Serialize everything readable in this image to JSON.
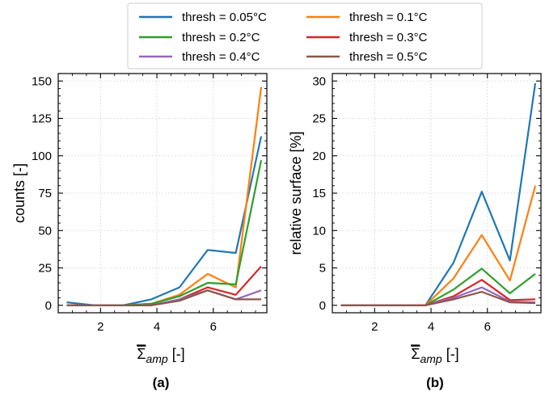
{
  "colors": {
    "0.05": "#1f77b4",
    "0.1": "#ff7f0e",
    "0.2": "#2ca02c",
    "0.3": "#d62728",
    "0.4": "#9467bd",
    "0.5": "#8c564b"
  },
  "legend": {
    "entries": [
      "thresh = 0.05°C",
      "thresh = 0.1°C",
      "thresh = 0.2°C",
      "thresh = 0.3°C",
      "thresh = 0.4°C",
      "thresh = 0.5°C"
    ],
    "placement": "top-center, above plots, 3 rows x 2 columns"
  },
  "chart_data": [
    {
      "type": "line",
      "caption": "(a)",
      "xlabel": "Σ̄amp [-]",
      "ylabel": "counts [-]",
      "xlim": [
        0.5,
        7.9
      ],
      "ylim": [
        -5,
        155
      ],
      "xticks": [
        2,
        4,
        6
      ],
      "yticks": [
        0,
        25,
        50,
        75,
        100,
        125,
        150
      ],
      "grid": true,
      "x": [
        0.8,
        1.8,
        2.8,
        3.8,
        4.8,
        5.8,
        6.8,
        7.7
      ],
      "series": [
        {
          "name": "thresh = 0.05°C",
          "values": [
            2,
            0,
            0,
            4,
            12,
            37,
            35,
            113
          ]
        },
        {
          "name": "thresh = 0.1°C",
          "values": [
            0,
            0,
            0,
            1,
            7,
            21,
            12,
            146
          ]
        },
        {
          "name": "thresh = 0.2°C",
          "values": [
            0,
            0,
            0,
            1,
            6,
            15,
            14,
            97
          ]
        },
        {
          "name": "thresh = 0.3°C",
          "values": [
            0,
            0,
            0,
            0,
            4,
            12,
            7,
            26
          ]
        },
        {
          "name": "thresh = 0.4°C",
          "values": [
            0,
            0,
            0,
            0,
            4,
            10,
            4,
            10
          ]
        },
        {
          "name": "thresh = 0.5°C",
          "values": [
            0,
            0,
            0,
            0,
            3,
            10,
            4,
            4
          ]
        }
      ]
    },
    {
      "type": "line",
      "caption": "(b)",
      "xlabel": "Σ̄amp [-]",
      "ylabel": "relative surface [%]",
      "xlim": [
        0.5,
        7.9
      ],
      "ylim": [
        -1,
        31
      ],
      "xticks": [
        2,
        4,
        6
      ],
      "yticks": [
        0,
        5,
        10,
        15,
        20,
        25,
        30
      ],
      "grid": true,
      "x": [
        0.8,
        1.8,
        2.8,
        3.8,
        4.8,
        5.8,
        6.8,
        7.7
      ],
      "series": [
        {
          "name": "thresh = 0.05°C",
          "values": [
            0,
            0,
            0,
            0,
            5.7,
            15.2,
            6.0,
            29.7
          ]
        },
        {
          "name": "thresh = 0.1°C",
          "values": [
            0,
            0,
            0,
            0,
            3.6,
            9.4,
            3.3,
            16.0
          ]
        },
        {
          "name": "thresh = 0.2°C",
          "values": [
            0,
            0,
            0,
            0,
            2.1,
            4.9,
            1.6,
            4.2
          ]
        },
        {
          "name": "thresh = 0.3°C",
          "values": [
            0,
            0,
            0,
            0,
            1.2,
            3.4,
            0.7,
            0.8
          ]
        },
        {
          "name": "thresh = 0.4°C",
          "values": [
            0,
            0,
            0,
            0,
            1.0,
            2.4,
            0.5,
            0.4
          ]
        },
        {
          "name": "thresh = 0.5°C",
          "values": [
            0,
            0,
            0,
            0,
            0.8,
            1.8,
            0.4,
            0.3
          ]
        }
      ]
    }
  ]
}
